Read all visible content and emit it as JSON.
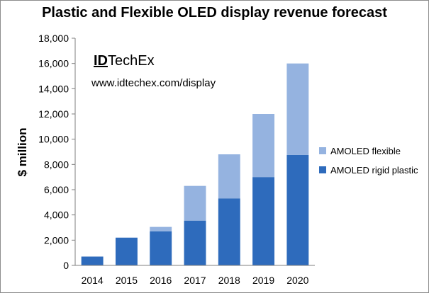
{
  "chart_data": {
    "type": "bar",
    "stacked": true,
    "title": "Plastic and Flexible OLED  display revenue forecast",
    "xlabel": "",
    "ylabel": "$ million",
    "categories": [
      "2014",
      "2015",
      "2016",
      "2017",
      "2018",
      "2019",
      "2020"
    ],
    "series": [
      {
        "name": "AMOLED rigid plastic",
        "color": "#2e6bbc",
        "values": [
          700,
          2200,
          2700,
          3550,
          5300,
          7000,
          8750
        ]
      },
      {
        "name": "AMOLED flexible",
        "color": "#95b3e0",
        "values": [
          0,
          0,
          350,
          2750,
          3500,
          5000,
          7250
        ]
      }
    ],
    "ylim": [
      0,
      18000
    ],
    "yticks": [
      0,
      2000,
      4000,
      6000,
      8000,
      10000,
      12000,
      14000,
      16000,
      18000
    ],
    "ytick_labels": [
      "0",
      "2,000",
      "4,000",
      "6,000",
      "8,000",
      "10,000",
      "12,000",
      "14,000",
      "16,000",
      "18,000"
    ],
    "grid": false,
    "legend_position": "right"
  },
  "brand": {
    "logo_id": "ID",
    "logo_rest": "TechEx",
    "url": "www.idtechex.com/display"
  }
}
